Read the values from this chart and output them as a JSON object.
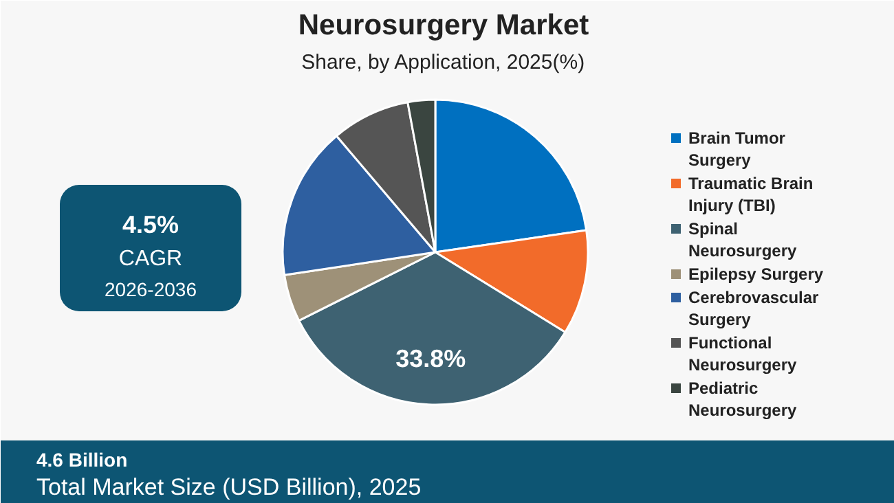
{
  "chart_data": {
    "type": "pie",
    "title": "Neurosurgery Market",
    "subtitle": "Share, by Application, 2025(%)",
    "categories": [
      "Brain Tumor Surgery",
      "Traumatic Brain Injury (TBI)",
      "Spinal Neurosurgery",
      "Epilepsy Surgery",
      "Cerebrovascular Surgery",
      "Functional Neurosurgery",
      "Pediatric Neurosurgery"
    ],
    "values": [
      22.7,
      11.1,
      33.8,
      5.0,
      16.2,
      8.3,
      2.9
    ],
    "colors": [
      "#0070c0",
      "#f26b2a",
      "#3e6272",
      "#9e9178",
      "#2e5fa0",
      "#555555",
      "#3a4540"
    ],
    "value_labels": [
      null,
      null,
      "33.8%",
      null,
      null,
      null,
      null
    ],
    "legend": "right",
    "annotations": [
      "4.5%",
      "CAGR",
      "2026-2036",
      "4.6 Billion",
      "Total Market Size (USD Billion), 2025"
    ]
  }
}
